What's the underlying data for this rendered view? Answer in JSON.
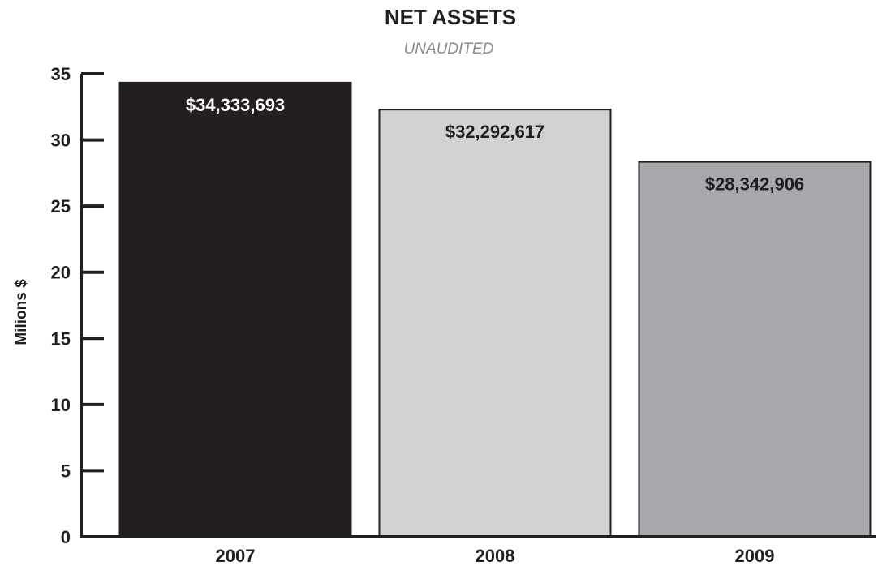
{
  "chart_data": {
    "type": "bar",
    "title": "NET ASSETS",
    "subtitle": "UNAUDITED",
    "ylabel": "Milions $",
    "xlabel": "",
    "categories": [
      "2007",
      "2008",
      "2009"
    ],
    "values": [
      34.333693,
      32.292617,
      28.342906
    ],
    "data_labels": [
      "$34,333,693",
      "$32,292,617",
      "$28,342,906"
    ],
    "bar_colors": [
      "#231f20",
      "#d1d2d4",
      "#a6a8ab"
    ],
    "label_colors": [
      "#ffffff",
      "#231f20",
      "#231f20"
    ],
    "ylim": [
      0,
      35
    ],
    "yticks": [
      0,
      5,
      10,
      15,
      20,
      25,
      30,
      35
    ],
    "grid": false,
    "legend": "none"
  }
}
